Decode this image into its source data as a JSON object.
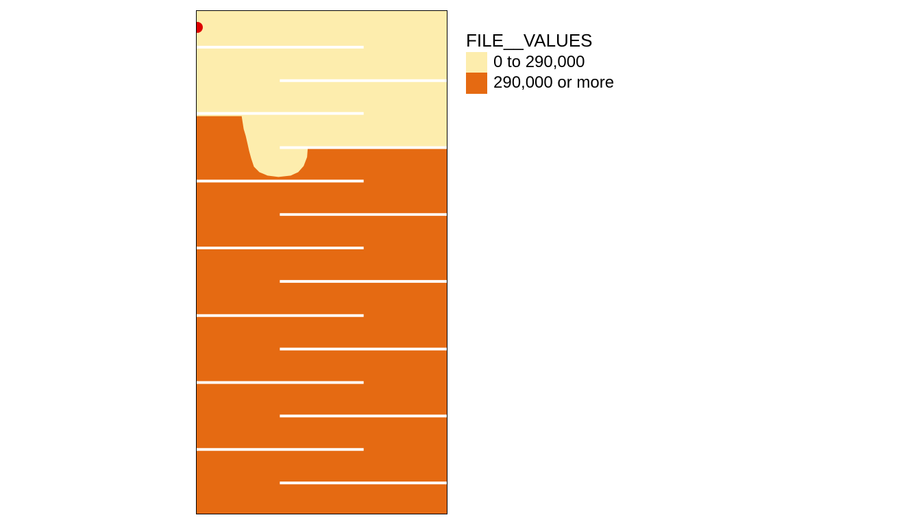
{
  "legend": {
    "title": "FILE__VALUES",
    "classes": [
      {
        "label": "0 to 290,000",
        "color": "#fdedad"
      },
      {
        "label": "290,000 or more",
        "color": "#e56a12"
      }
    ]
  },
  "map": {
    "low_color": "#fdedad",
    "high_color": "#e56a12",
    "line_color": "#ffffff",
    "point_color": "#dd0000"
  }
}
